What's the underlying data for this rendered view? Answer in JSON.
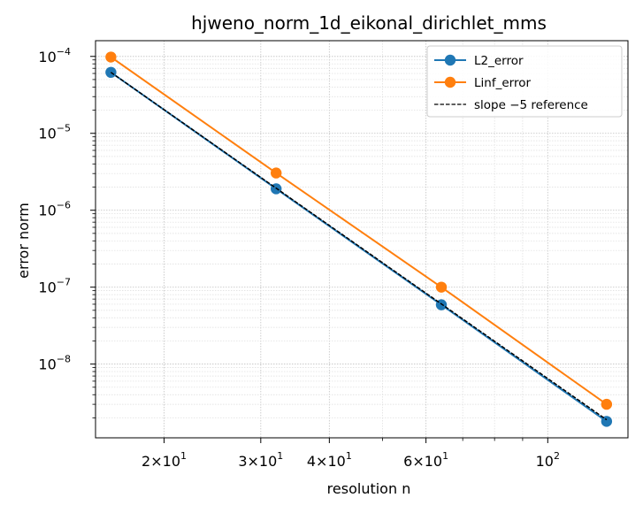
{
  "chart_data": {
    "type": "line",
    "title": "hjweno_norm_1d_eikonal_dirichlet_mms",
    "xlabel": "resolution n",
    "ylabel": "error norm",
    "xscale": "log",
    "yscale": "log",
    "xlim": [
      15,
      140
    ],
    "ylim": [
      1.1e-09,
      0.00016
    ],
    "grid": true,
    "legend_position": "top-right",
    "x": [
      16,
      32,
      64,
      128
    ],
    "series": [
      {
        "name": "L2_error",
        "values": [
          6.2e-05,
          1.9e-06,
          5.9e-08,
          1.8e-09
        ],
        "color": "#1f77b4",
        "marker": "circle",
        "line": "solid"
      },
      {
        "name": "Linf_error",
        "values": [
          9.8e-05,
          3.05e-06,
          1e-07,
          3e-09
        ],
        "color": "#ff7f0e",
        "marker": "circle",
        "line": "solid"
      },
      {
        "name": "slope −5 reference",
        "values": [
          6.2e-05,
          1.9375e-06,
          6.05e-08,
          1.89e-09
        ],
        "color": "#000000",
        "marker": "none",
        "line": "dashed"
      }
    ],
    "x_ticks": [
      {
        "value": 20,
        "mant": "2",
        "base": "10",
        "exp": "1"
      },
      {
        "value": 30,
        "mant": "3",
        "base": "10",
        "exp": "1"
      },
      {
        "value": 40,
        "mant": "4",
        "base": "10",
        "exp": "1"
      },
      {
        "value": 60,
        "mant": "6",
        "base": "10",
        "exp": "1"
      },
      {
        "value": 100,
        "mant": "",
        "base": "10",
        "exp": "2"
      }
    ],
    "y_ticks": [
      {
        "value": 0.0001,
        "base": "10",
        "exp": "−4"
      },
      {
        "value": 1e-05,
        "base": "10",
        "exp": "−5"
      },
      {
        "value": 1e-06,
        "base": "10",
        "exp": "−6"
      },
      {
        "value": 1e-07,
        "base": "10",
        "exp": "−7"
      },
      {
        "value": 1e-08,
        "base": "10",
        "exp": "−8"
      }
    ]
  }
}
